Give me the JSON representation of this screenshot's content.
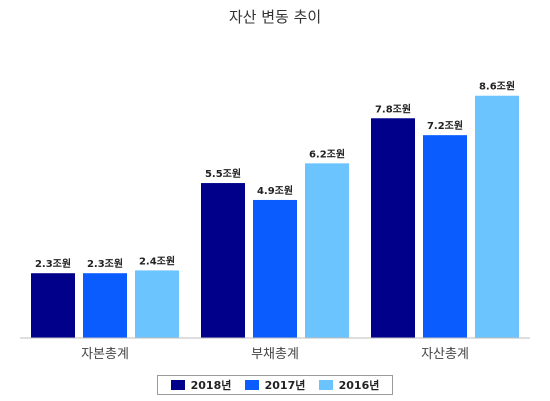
{
  "chart_data": {
    "type": "bar",
    "title": "자산 변동 추이",
    "categories": [
      "자본총계",
      "부채총계",
      "자산총계"
    ],
    "series": [
      {
        "name": "2018년",
        "values": [
          2.3,
          5.5,
          7.8
        ],
        "labels": [
          "2.3조원",
          "5.5조원",
          "7.8조원"
        ],
        "color": "#00008b"
      },
      {
        "name": "2017년",
        "values": [
          2.3,
          4.9,
          7.2
        ],
        "labels": [
          "2.3조원",
          "4.9조원",
          "7.2조원"
        ],
        "color": "#0a5cff"
      },
      {
        "name": "2016년",
        "values": [
          2.4,
          6.2,
          8.6
        ],
        "labels": [
          "2.4조원",
          "6.2조원",
          "8.6조원"
        ],
        "color": "#6cc4ff"
      }
    ],
    "xlabel": "",
    "ylabel": "",
    "ylim": [
      0,
      9.3
    ],
    "grid": false,
    "legend_position": "bottom"
  }
}
